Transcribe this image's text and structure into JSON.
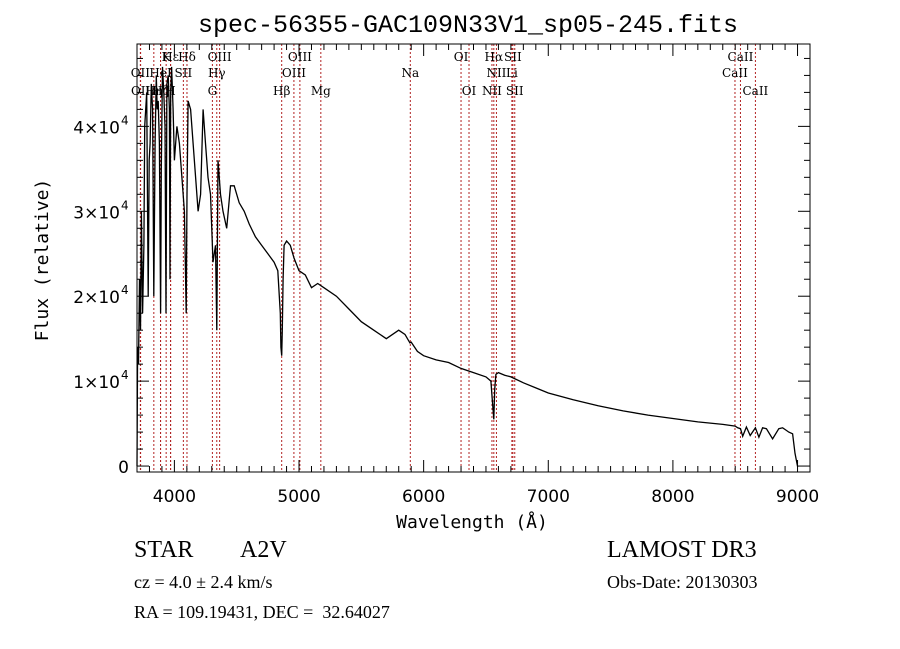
{
  "chart_data": {
    "type": "line",
    "title": "spec-56355-GAC109N33V1_sp05-245.fits",
    "xlabel": "Wavelength (Å)",
    "ylabel": "Flux (relative)",
    "xlim": [
      3700,
      9100
    ],
    "ylim": [
      -700,
      49700
    ],
    "xticks": [
      4000,
      5000,
      6000,
      7000,
      8000,
      9000
    ],
    "xtick_labels": [
      "4000",
      "5000",
      "6000",
      "7000",
      "8000",
      "9000"
    ],
    "yticks": [
      0,
      10000,
      20000,
      30000,
      40000
    ],
    "ytick_labels": [
      {
        "mant": "0",
        "exp": ""
      },
      {
        "mant": "1×10",
        "exp": "4"
      },
      {
        "mant": "2×10",
        "exp": "4"
      },
      {
        "mant": "3×10",
        "exp": "4"
      },
      {
        "mant": "4×10",
        "exp": "4"
      }
    ],
    "grid": false,
    "series": [
      {
        "name": "spectrum",
        "x": [
          3700,
          3705,
          3712,
          3720,
          3728,
          3735,
          3745,
          3755,
          3762,
          3770,
          3778,
          3790,
          3798,
          3805,
          3815,
          3825,
          3835,
          3845,
          3855,
          3862,
          3870,
          3880,
          3889,
          3895,
          3905,
          3915,
          3925,
          3933,
          3940,
          3950,
          3960,
          3965,
          3970,
          3978,
          3990,
          4000,
          4020,
          4040,
          4060,
          4080,
          4095,
          4101,
          4110,
          4130,
          4150,
          4170,
          4190,
          4210,
          4230,
          4250,
          4270,
          4290,
          4310,
          4330,
          4340,
          4350,
          4370,
          4390,
          4420,
          4450,
          4480,
          4520,
          4560,
          4600,
          4650,
          4700,
          4750,
          4800,
          4830,
          4850,
          4855,
          4861,
          4866,
          4872,
          4880,
          4900,
          4930,
          4960,
          5000,
          5050,
          5100,
          5150,
          5200,
          5300,
          5400,
          5500,
          5600,
          5700,
          5800,
          5850,
          5890,
          5900,
          5950,
          6000,
          6100,
          6200,
          6300,
          6400,
          6500,
          6540,
          6555,
          6563,
          6570,
          6580,
          6600,
          6650,
          6700,
          6800,
          6900,
          7000,
          7200,
          7400,
          7600,
          7800,
          8000,
          8200,
          8400,
          8500,
          8520,
          8542,
          8560,
          8590,
          8620,
          8662,
          8690,
          8720,
          8750,
          8800,
          8850,
          8880,
          8900,
          8930,
          8960,
          8980,
          9000,
          9005
        ],
        "y": [
          0,
          14000,
          12000,
          22000,
          16000,
          30000,
          18000,
          26000,
          40000,
          42000,
          44000,
          20000,
          36000,
          38000,
          45000,
          42000,
          20000,
          38000,
          46000,
          42000,
          43000,
          38000,
          18000,
          35000,
          47000,
          44000,
          40000,
          18000,
          45000,
          46000,
          42000,
          22000,
          44000,
          47000,
          42000,
          36000,
          40000,
          38000,
          34000,
          30000,
          18000,
          32000,
          43000,
          42000,
          38000,
          34000,
          30000,
          32000,
          42000,
          38000,
          34000,
          32000,
          24000,
          26000,
          16000,
          36000,
          32000,
          30000,
          28000,
          33000,
          33000,
          31000,
          30000,
          28500,
          27000,
          26000,
          25000,
          24000,
          23000,
          18000,
          14000,
          13000,
          16000,
          22000,
          26000,
          26500,
          26000,
          24500,
          23000,
          22500,
          21000,
          21500,
          21000,
          20000,
          18500,
          17000,
          16000,
          15000,
          16000,
          15500,
          14500,
          14600,
          13500,
          13000,
          12500,
          12200,
          11500,
          11000,
          10500,
          10000,
          7000,
          5500,
          9000,
          10800,
          11000,
          10700,
          10500,
          9800,
          9200,
          8600,
          7800,
          7100,
          6500,
          6000,
          5600,
          5200,
          4900,
          4700,
          4500,
          4400,
          3500,
          4600,
          3600,
          4500,
          3400,
          4500,
          4400,
          3200,
          4400,
          4500,
          4300,
          4000,
          3800,
          1500,
          0,
          0
        ]
      }
    ],
    "line_markers": [
      {
        "label": "Hε",
        "wave": 3970,
        "row": 0
      },
      {
        "label": "K",
        "wave": 3934,
        "row": 0
      },
      {
        "label": "Hδ",
        "wave": 4101,
        "row": 0
      },
      {
        "label": "OIII",
        "wave": 4363,
        "row": 0
      },
      {
        "label": "OIII",
        "wave": 5007,
        "row": 0
      },
      {
        "label": "OI",
        "wave": 6300,
        "row": 0
      },
      {
        "label": "Hα",
        "wave": 6563,
        "row": 0
      },
      {
        "label": "SII",
        "wave": 6716,
        "row": 0
      },
      {
        "label": "CaII",
        "wave": 8542,
        "row": 0
      },
      {
        "label": "OII",
        "wave": 3727,
        "row": 1
      },
      {
        "label": "HeI",
        "wave": 3889,
        "row": 1
      },
      {
        "label": "SII",
        "wave": 4072,
        "row": 1
      },
      {
        "label": "Hγ",
        "wave": 4340,
        "row": 1
      },
      {
        "label": "OIII",
        "wave": 4959,
        "row": 1
      },
      {
        "label": "Na",
        "wave": 5893,
        "row": 1
      },
      {
        "label": "NII",
        "wave": 6584,
        "row": 1
      },
      {
        "label": "Li",
        "wave": 6708,
        "row": 1
      },
      {
        "label": "CaII",
        "wave": 8498,
        "row": 1
      },
      {
        "label": "OII",
        "wave": 3729,
        "row": 2
      },
      {
        "label": "Hη",
        "wave": 3835,
        "row": 2
      },
      {
        "label": "Hζ",
        "wave": 3889,
        "row": 2
      },
      {
        "label": "H",
        "wave": 3969,
        "row": 2
      },
      {
        "label": "G",
        "wave": 4305,
        "row": 2
      },
      {
        "label": "Hβ",
        "wave": 4861,
        "row": 2
      },
      {
        "label": "Mg",
        "wave": 5175,
        "row": 2
      },
      {
        "label": "OI",
        "wave": 6364,
        "row": 2
      },
      {
        "label": "NII",
        "wave": 6548,
        "row": 2
      },
      {
        "label": "SII",
        "wave": 6731,
        "row": 2
      },
      {
        "label": "CaII",
        "wave": 8662,
        "row": 2
      }
    ],
    "marker_color": "#b22222",
    "line_color": "#000000"
  },
  "info": {
    "object_class": "STAR",
    "subclass": "A2V",
    "survey": "LAMOST DR3",
    "cz": "cz = 4.0 ± 2.4 km/s",
    "obs_date": "Obs-Date: 20130303",
    "coords": "RA = 109.19431, DEC =  32.64027"
  }
}
